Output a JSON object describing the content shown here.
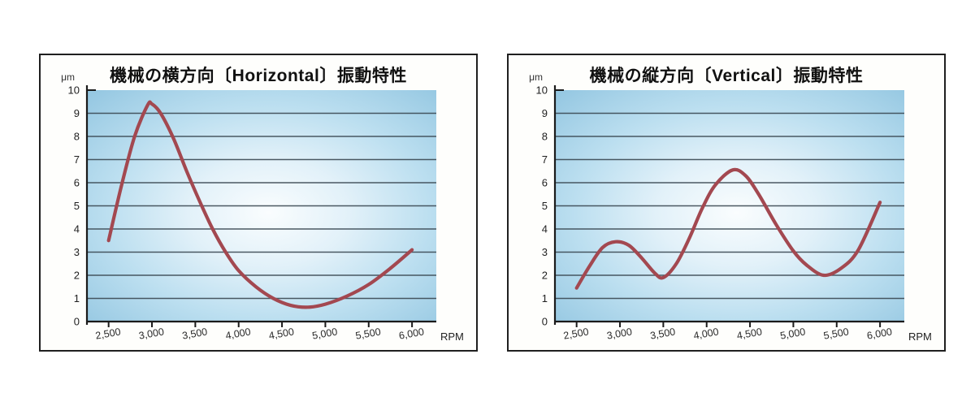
{
  "chart_data": [
    {
      "type": "line",
      "title": "機械の横方向〔Horizontal〕振動特性",
      "xlabel": "RPM",
      "ylabel": "μm",
      "xlim": [
        2250,
        6280
      ],
      "ylim": [
        0,
        10
      ],
      "x_ticks": [
        2500,
        3000,
        3500,
        4000,
        4500,
        5000,
        5500,
        6000
      ],
      "x_tick_labels": [
        "2,500",
        "3,000",
        "3,500",
        "4,000",
        "4,500",
        "5,000",
        "5,500",
        "6,000"
      ],
      "y_ticks": [
        0,
        1,
        2,
        3,
        4,
        5,
        6,
        7,
        8,
        9,
        10
      ],
      "grid": "horizontal-only",
      "legend": "none",
      "series": [
        {
          "name": "horizontal-vibration",
          "x": [
            2500,
            2650,
            2800,
            2950,
            3000,
            3100,
            3250,
            3400,
            3550,
            3700,
            3850,
            4000,
            4200,
            4400,
            4600,
            4800,
            5000,
            5250,
            5500,
            5750,
            6000
          ],
          "y": [
            3.5,
            5.9,
            8.0,
            9.35,
            9.4,
            9.0,
            7.9,
            6.5,
            5.2,
            4.0,
            3.0,
            2.2,
            1.5,
            1.0,
            0.7,
            0.62,
            0.75,
            1.1,
            1.6,
            2.3,
            3.1
          ]
        }
      ]
    },
    {
      "type": "line",
      "title": "機械の縦方向〔Vertical〕振動特性",
      "xlabel": "RPM",
      "ylabel": "μm",
      "xlim": [
        2250,
        6280
      ],
      "ylim": [
        0,
        10
      ],
      "x_ticks": [
        2500,
        3000,
        3500,
        4000,
        4500,
        5000,
        5500,
        6000
      ],
      "x_tick_labels": [
        "2,500",
        "3,000",
        "3,500",
        "4,000",
        "4,500",
        "5,000",
        "5,500",
        "6,000"
      ],
      "y_ticks": [
        0,
        1,
        2,
        3,
        4,
        5,
        6,
        7,
        8,
        9,
        10
      ],
      "grid": "horizontal-only",
      "legend": "none",
      "series": [
        {
          "name": "vertical-vibration",
          "x": [
            2500,
            2650,
            2800,
            2950,
            3100,
            3250,
            3400,
            3500,
            3650,
            3800,
            3950,
            4100,
            4300,
            4450,
            4600,
            4800,
            5000,
            5150,
            5350,
            5550,
            5750,
            6000
          ],
          "y": [
            1.45,
            2.4,
            3.2,
            3.45,
            3.3,
            2.75,
            2.1,
            1.9,
            2.5,
            3.6,
            4.9,
            5.9,
            6.55,
            6.3,
            5.5,
            4.2,
            3.05,
            2.45,
            2.0,
            2.3,
            3.1,
            5.15
          ]
        }
      ]
    }
  ],
  "colors": {
    "curve": "#a34850",
    "grid": "#3a4852",
    "axis": "#1b1b1b",
    "tick_label": "#2a2a2a",
    "plot_gradient": [
      "#fafdfe",
      "#e2f1f9",
      "#bcdff0",
      "#96c8e2"
    ],
    "card_border": "#1f1f1f",
    "card_background": "#fefefc",
    "page_background": "#ffffff"
  }
}
